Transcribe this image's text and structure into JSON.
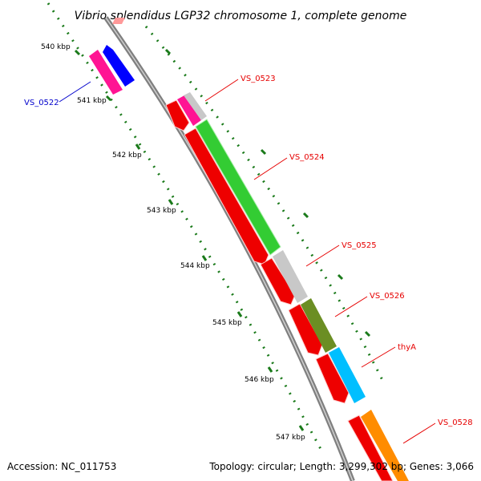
{
  "title": "Vibrio splendidus LGP32 chromosome 1, complete genome",
  "footer": {
    "accession": "Accession: NC_011753",
    "summary": "Topology: circular; Length: 3,299,302 bp; Genes: 3,066"
  },
  "ticks": [
    "540 kbp",
    "541 kbp",
    "542 kbp",
    "543 kbp",
    "544 kbp",
    "545 kbp",
    "546 kbp",
    "547 kbp"
  ],
  "gene_labels": [
    {
      "name": "VS_0522",
      "color": "#0000cc"
    },
    {
      "name": "VS_0523",
      "color": "#e60000"
    },
    {
      "name": "VS_0524",
      "color": "#e60000"
    },
    {
      "name": "VS_0525",
      "color": "#e60000"
    },
    {
      "name": "VS_0526",
      "color": "#e60000"
    },
    {
      "name": "thyA",
      "color": "#e60000"
    },
    {
      "name": "VS_0528",
      "color": "#e60000"
    }
  ],
  "colors": {
    "backbone": "#808080",
    "cds": "#ee0000",
    "tick": "#1a7a1a",
    "green_gene": "#33cc33",
    "grey_gene": "#c8c8c8",
    "olive_gene": "#6b8e23",
    "cyan_gene": "#00bfff",
    "orange_gene": "#ff8c00",
    "magenta_gene": "#ff1493",
    "blue_gene": "#0000ff"
  }
}
